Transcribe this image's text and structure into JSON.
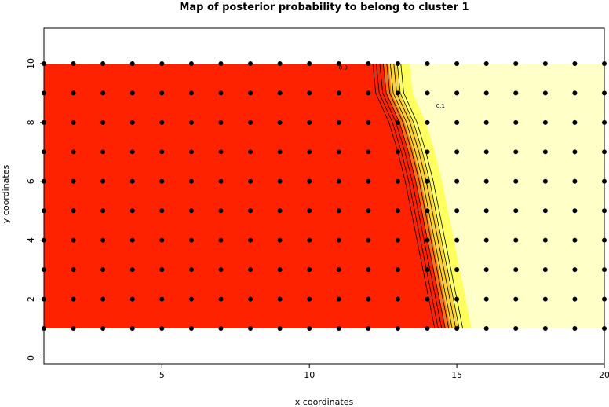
{
  "chart_data": {
    "type": "heatmap",
    "title": "Map of posterior probability to belong to cluster  1",
    "xlabel": "x coordinates",
    "ylabel": "y coordinates",
    "xlim": [
      1,
      20
    ],
    "ylim": [
      -0.2,
      11.2
    ],
    "x_ticks": [
      5,
      10,
      15,
      20
    ],
    "y_ticks": [
      0,
      2,
      4,
      6,
      8,
      10
    ],
    "grid": false,
    "legend": "none",
    "colors": {
      "high_probability": "#ff2200",
      "mid_high": "#ff7010",
      "mid": "#ffd030",
      "mid_low": "#ffff60",
      "low_probability": "#ffffc8",
      "points": "#000000",
      "contours": "#000000"
    },
    "field_extent": {
      "x": [
        1,
        20
      ],
      "y": [
        1,
        10
      ]
    },
    "boundary_x_by_y": [
      {
        "y": 1,
        "x": 14.6
      },
      {
        "y": 2,
        "x": 14.4
      },
      {
        "y": 3,
        "x": 14.2
      },
      {
        "y": 4,
        "x": 14.0
      },
      {
        "y": 5,
        "x": 13.8
      },
      {
        "y": 6,
        "x": 13.6
      },
      {
        "y": 7,
        "x": 13.35
      },
      {
        "y": 8,
        "x": 13.05
      },
      {
        "y": 9,
        "x": 12.6
      },
      {
        "y": 10,
        "x": 12.5
      }
    ],
    "contour_levels": [
      "0.1",
      "0.2",
      "0.3",
      "0.4",
      "0.5",
      "0.6",
      "0.7",
      "0.8",
      "0.9"
    ],
    "contour_labels_shown": [
      {
        "text": "0.9",
        "x": 11.0,
        "y": 9.8
      },
      {
        "text": "0.1",
        "x": 14.3,
        "y": 8.5
      }
    ],
    "points": {
      "x": [
        1,
        2,
        3,
        4,
        5,
        6,
        7,
        8,
        9,
        10,
        11,
        12,
        13,
        14,
        15,
        16,
        17,
        18,
        19,
        20
      ],
      "y": [
        1,
        2,
        3,
        4,
        5,
        6,
        7,
        8,
        9,
        10
      ]
    }
  }
}
